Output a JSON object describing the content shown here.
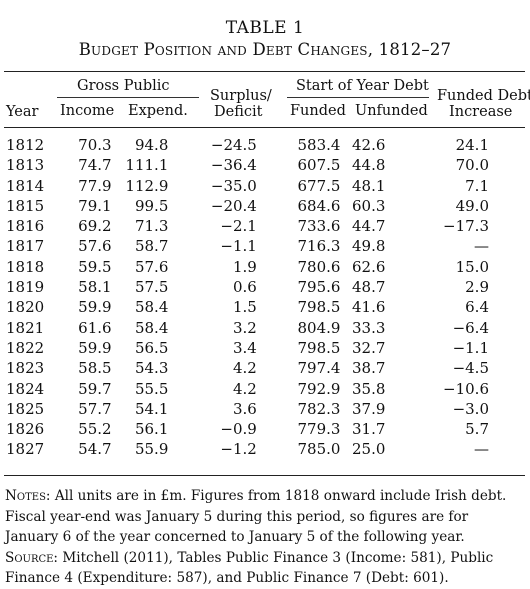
{
  "title": "TABLE 1",
  "subtitle": "Budget Position and Debt Changes, 1812–27",
  "headers": {
    "year": "Year",
    "gross_public": "Gross Public",
    "income": "Income",
    "expend": "Expend.",
    "surplus_1": "Surplus/",
    "surplus_2": "Deficit",
    "start_debt": "Start of Year Debt",
    "funded": "Funded",
    "unfunded": "Unfunded",
    "funded_inc_1": "Funded Debt",
    "funded_inc_2": "Increase"
  },
  "rows": [
    [
      "1812",
      "70.3",
      "94.8",
      "−24.5",
      "583.4",
      "42.6",
      "24.1"
    ],
    [
      "1813",
      "74.7",
      "111.1",
      "−36.4",
      "607.5",
      "44.8",
      "70.0"
    ],
    [
      "1814",
      "77.9",
      "112.9",
      "−35.0",
      "677.5",
      "48.1",
      "7.1"
    ],
    [
      "1815",
      "79.1",
      "99.5",
      "−20.4",
      "684.6",
      "60.3",
      "49.0"
    ],
    [
      "1816",
      "69.2",
      "71.3",
      "−2.1",
      "733.6",
      "44.7",
      "−17.3"
    ],
    [
      "1817",
      "57.6",
      "58.7",
      "−1.1",
      "716.3",
      "49.8",
      "—"
    ],
    [
      "1818",
      "59.5",
      "57.6",
      "1.9",
      "780.6",
      "62.6",
      "15.0"
    ],
    [
      "1819",
      "58.1",
      "57.5",
      "0.6",
      "795.6",
      "48.7",
      "2.9"
    ],
    [
      "1820",
      "59.9",
      "58.4",
      "1.5",
      "798.5",
      "41.6",
      "6.4"
    ],
    [
      "1821",
      "61.6",
      "58.4",
      "3.2",
      "804.9",
      "33.3",
      "−6.4"
    ],
    [
      "1822",
      "59.9",
      "56.5",
      "3.4",
      "798.5",
      "32.7",
      "−1.1"
    ],
    [
      "1823",
      "58.5",
      "54.3",
      "4.2",
      "797.4",
      "38.7",
      "−4.5"
    ],
    [
      "1824",
      "59.7",
      "55.5",
      "4.2",
      "792.9",
      "35.8",
      "−10.6"
    ],
    [
      "1825",
      "57.7",
      "54.1",
      "3.6",
      "782.3",
      "37.9",
      "−3.0"
    ],
    [
      "1826",
      "55.2",
      "56.1",
      "−0.9",
      "779.3",
      "31.7",
      "5.7"
    ],
    [
      "1827",
      "54.7",
      "55.9",
      "−1.2",
      "785.0",
      "25.0",
      "—"
    ]
  ],
  "notes": {
    "notes_label": "Notes:",
    "notes_text": " All units are in £m. Figures from 1818 onward include Irish debt. Fiscal year-end was January 5 during this period, so figures are for January 6 of the year concerned to January 5 of the following year.",
    "source_label": "Source:",
    "source_text": " Mitchell (2011), Tables Public Finance 3 (Income: 581), Public Finance 4 (Expenditure: 587), and Public Finance 7 (Debt: 601)."
  }
}
